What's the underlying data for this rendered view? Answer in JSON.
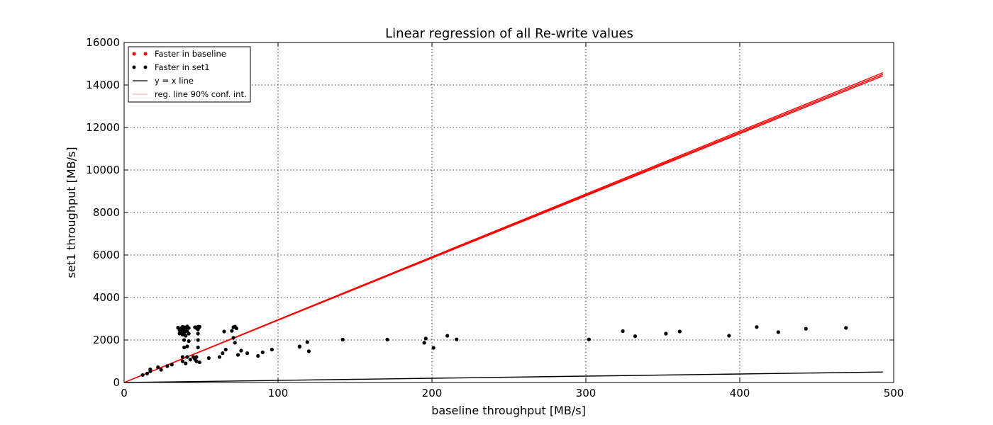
{
  "chart_data": {
    "type": "scatter",
    "title": "Linear regression of all Re-write values",
    "xlabel": "baseline throughput [MB/s]",
    "ylabel": "set1 throughput [MB/s]",
    "xlim": [
      0,
      500
    ],
    "ylim": [
      0,
      16000
    ],
    "xticks": [
      "0",
      "100",
      "200",
      "300",
      "400",
      "500"
    ],
    "yticks": [
      "0",
      "2000",
      "4000",
      "6000",
      "8000",
      "10000",
      "12000",
      "14000",
      "16000"
    ],
    "grid": true,
    "legend_position": "top-left",
    "legend": [
      {
        "label": "Faster in baseline",
        "kind": "dots",
        "color": "#ff0000"
      },
      {
        "label": "Faster in set1",
        "kind": "dots",
        "color": "#000000"
      },
      {
        "label": "y = x line",
        "kind": "line",
        "color": "#000000"
      },
      {
        "label": "reg. line 90% conf. int.",
        "kind": "line",
        "color": "#ffb0b0"
      }
    ],
    "series": [
      {
        "name": "Faster in baseline",
        "color": "#ff0000",
        "points": []
      },
      {
        "name": "Faster in set1",
        "color": "#000000",
        "points": [
          [
            12,
            350
          ],
          [
            15,
            420
          ],
          [
            17,
            530
          ],
          [
            17,
            620
          ],
          [
            22,
            720
          ],
          [
            24,
            600
          ],
          [
            28,
            770
          ],
          [
            31,
            840
          ],
          [
            35,
            2580
          ],
          [
            36,
            2300
          ],
          [
            36,
            2450
          ],
          [
            37,
            2550
          ],
          [
            37,
            2400
          ],
          [
            38,
            2620
          ],
          [
            38,
            2250
          ],
          [
            38,
            2480
          ],
          [
            38,
            1000
          ],
          [
            38,
            1200
          ],
          [
            39,
            2350
          ],
          [
            39,
            2600
          ],
          [
            39,
            2000
          ],
          [
            39,
            1650
          ],
          [
            40,
            2200
          ],
          [
            40,
            2500
          ],
          [
            40,
            900
          ],
          [
            41,
            2640
          ],
          [
            41,
            2400
          ],
          [
            41,
            1700
          ],
          [
            41,
            1200
          ],
          [
            42,
            2300
          ],
          [
            42,
            2560
          ],
          [
            42,
            1950
          ],
          [
            43,
            1080
          ],
          [
            45,
            1200
          ],
          [
            46,
            1100
          ],
          [
            46,
            2600
          ],
          [
            47,
            2560
          ],
          [
            47,
            1000
          ],
          [
            47,
            1200
          ],
          [
            48,
            2630
          ],
          [
            48,
            2500
          ],
          [
            48,
            2300
          ],
          [
            48,
            2000
          ],
          [
            48,
            1650
          ],
          [
            49,
            2620
          ],
          [
            49,
            950
          ],
          [
            55,
            1150
          ],
          [
            62,
            1200
          ],
          [
            64,
            1380
          ],
          [
            65,
            2400
          ],
          [
            66,
            1550
          ],
          [
            70,
            2430
          ],
          [
            71,
            2600
          ],
          [
            71,
            2100
          ],
          [
            72,
            2630
          ],
          [
            72,
            1870
          ],
          [
            73,
            2550
          ],
          [
            74,
            1300
          ],
          [
            76,
            1500
          ],
          [
            80,
            1380
          ],
          [
            87,
            1250
          ],
          [
            90,
            1420
          ],
          [
            96,
            1550
          ],
          [
            114,
            1700
          ],
          [
            114,
            1680
          ],
          [
            119,
            1900
          ],
          [
            120,
            1470
          ],
          [
            142,
            2020
          ],
          [
            171,
            2020
          ],
          [
            195,
            1870
          ],
          [
            196,
            2070
          ],
          [
            201,
            1630
          ],
          [
            210,
            2200
          ],
          [
            216,
            2030
          ],
          [
            302,
            2030
          ],
          [
            324,
            2420
          ],
          [
            332,
            2180
          ],
          [
            352,
            2300
          ],
          [
            361,
            2400
          ],
          [
            393,
            2200
          ],
          [
            411,
            2610
          ],
          [
            425,
            2370
          ],
          [
            443,
            2530
          ],
          [
            469,
            2570
          ]
        ]
      }
    ],
    "lines": [
      {
        "name": "y = x line",
        "color": "#000000",
        "x": [
          0,
          493
        ],
        "y": [
          0,
          493
        ]
      },
      {
        "name": "regression line",
        "color": "#ff0000",
        "x": [
          0,
          493
        ],
        "y": [
          0,
          14500
        ]
      },
      {
        "name": "reg. line 90% conf. int. upper",
        "color": "#ff0000",
        "x": [
          0,
          493
        ],
        "y": [
          0,
          14580
        ]
      },
      {
        "name": "reg. line 90% conf. int. lower",
        "color": "#ff0000",
        "x": [
          0,
          493
        ],
        "y": [
          0,
          14430
        ]
      }
    ]
  }
}
